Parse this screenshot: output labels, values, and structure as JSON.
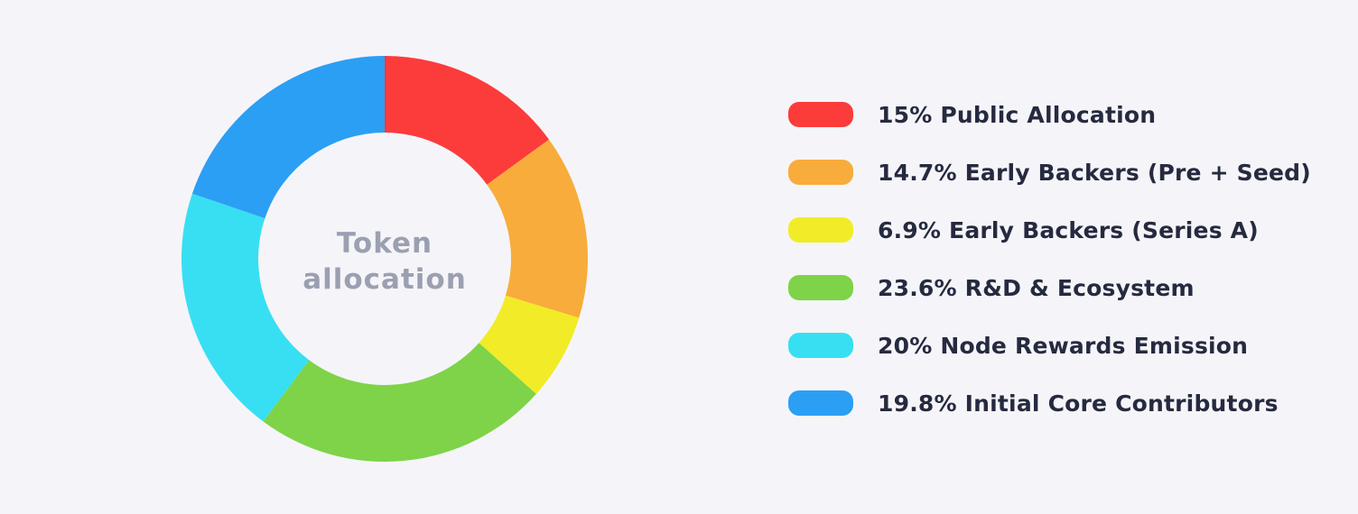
{
  "page": {
    "background_color": "#F5F5F9"
  },
  "chart_data": {
    "type": "pie",
    "subtype": "donut",
    "title": "Token allocation",
    "center_label": "Token allocation",
    "center_label_color": "#9BA0B1",
    "legend_position": "right",
    "legend_text_color": "#262A40",
    "direction": "clockwise",
    "start_angle": "top",
    "segments": [
      {
        "name": "Public Allocation",
        "value": 15,
        "label": "15% Public Allocation",
        "color": "#FC3B3B"
      },
      {
        "name": "Early Backers (Pre + Seed)",
        "value": 14.7,
        "label": "14.7% Early Backers (Pre + Seed)",
        "color": "#F8AC3B"
      },
      {
        "name": "Early Backers (Series A)",
        "value": 6.9,
        "label": "6.9% Early Backers (Series A)",
        "color": "#F1EC27"
      },
      {
        "name": "R&D & Ecosystem",
        "value": 23.6,
        "label": "23.6% R&D & Ecosystem",
        "color": "#7ED348"
      },
      {
        "name": "Node Rewards Emission",
        "value": 20,
        "label": "20% Node Rewards Emission",
        "color": "#38DFF3"
      },
      {
        "name": "Initial Core Contributors",
        "value": 19.8,
        "label": "19.8% Initial Core Contributors",
        "color": "#2B9FF4"
      }
    ]
  }
}
